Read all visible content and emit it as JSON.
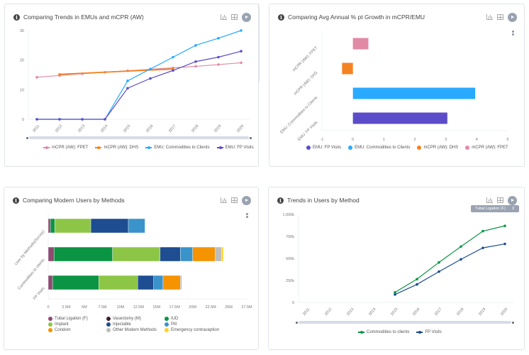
{
  "panels": [
    {
      "title": "Comparing Trends in EMUs and mCPR (AW)",
      "icons": [
        "info-icon",
        "bar-chart-icon",
        "table-icon",
        "play-icon"
      ]
    },
    {
      "title": "Comparing Avg Annual % pt Growth in mCPR/EMU",
      "icons": [
        "info-icon",
        "bar-chart-icon",
        "table-icon",
        "play-icon"
      ]
    },
    {
      "title": "Comparing Modern Users by Methods",
      "icons": [
        "info-icon",
        "bar-chart-icon",
        "table-icon",
        "play-icon"
      ]
    },
    {
      "title": "Trends in Users by Method",
      "icons": [
        "info-icon",
        "bar-chart-icon",
        "table-icon",
        "play-icon"
      ],
      "dropdown": {
        "selected": "Tubal Ligation (F)",
        "arrow": "⇕"
      }
    }
  ],
  "chart_data": [
    {
      "type": "line",
      "title": "Comparing Trends in EMUs and mCPR (AW)",
      "x": [
        "2011",
        "2012",
        "2013",
        "2014",
        "2015",
        "2016",
        "2017",
        "2018",
        "2019",
        "2020"
      ],
      "ylim": [
        0,
        30
      ],
      "yticks": [
        "0",
        "10",
        "20",
        "30"
      ],
      "grid": false,
      "legend": "bottom",
      "series": [
        {
          "name": "mCPR (AW): FPET",
          "color": "#e08aa5",
          "values": [
            14.2,
            14.8,
            15.4,
            15.9,
            16.4,
            16.9,
            17.4,
            17.9,
            18.5,
            19.1
          ]
        },
        {
          "name": "mCPR (AW): DHS",
          "color": "#f58220",
          "values": [
            null,
            15.2,
            null,
            null,
            null,
            null,
            17.0,
            null,
            null,
            null
          ]
        },
        {
          "name": "EMU: Commodities to Clients",
          "color": "#29aaff",
          "values": [
            0,
            0,
            0,
            0,
            13.0,
            17.0,
            21.0,
            25.0,
            27.4,
            30.0
          ]
        },
        {
          "name": "EMU: FP Visits",
          "color": "#5b4dc9",
          "values": [
            0,
            0,
            0,
            0,
            10.5,
            13.8,
            16.5,
            19.5,
            21.0,
            23.0
          ]
        }
      ]
    },
    {
      "type": "bar",
      "orientation": "horizontal",
      "title": "Comparing Avg Annual % pt Growth in mCPR/EMU",
      "categories": [
        "mCPR (AW): FPET",
        "mCPR (AW): DHS",
        "EMU: Commodities to Clients",
        "EMU: FP Visits"
      ],
      "values": [
        0.5,
        -0.35,
        3.95,
        3.05
      ],
      "colors": [
        "#e08aa5",
        "#f58220",
        "#29aaff",
        "#5b4dc9"
      ],
      "xlim": [
        -1,
        5
      ],
      "xticks": [
        "-1",
        "0",
        "1",
        "2",
        "3",
        "4",
        "5"
      ],
      "grid": false,
      "legend": "bottom",
      "legend_entries": [
        {
          "name": "EMU: FP Visits",
          "color": "#5b4dc9"
        },
        {
          "name": "EMU: Commodities to Clients",
          "color": "#29aaff"
        },
        {
          "name": "mCPR (AW): DHS",
          "color": "#f58220"
        },
        {
          "name": "mCPR (AW): FPET",
          "color": "#e08aa5"
        }
      ]
    },
    {
      "type": "bar",
      "orientation": "horizontal",
      "stacked": true,
      "title": "Comparing Modern Users by Methods",
      "categories": [
        "User by Methods(Survey)",
        "Commodities to clients",
        "FP Visits"
      ],
      "xlim": [
        0,
        27.5
      ],
      "xticks": [
        "0",
        "2.5M",
        "5M",
        "7.5M",
        "10M",
        "12.5M",
        "15M",
        "17.5M",
        "20M",
        "22.5M",
        "25M",
        "27.5M"
      ],
      "legend": "bottom",
      "series": [
        {
          "name": "Tubal Ligation (F)",
          "color": "#8e4a72",
          "values": [
            0.3,
            0.8,
            0.6
          ]
        },
        {
          "name": "Vasectomy (M)",
          "color": "#3d1e2e",
          "values": [
            0.0,
            0.0,
            0.0
          ]
        },
        {
          "name": "IUD",
          "color": "#0b9444",
          "values": [
            0.6,
            8.1,
            6.4
          ]
        },
        {
          "name": "Implant",
          "color": "#8dc646",
          "values": [
            5.0,
            6.6,
            5.4
          ]
        },
        {
          "name": "Injectable",
          "color": "#1e4d91",
          "values": [
            5.2,
            2.8,
            2.2
          ]
        },
        {
          "name": "Pill",
          "color": "#3a93cb",
          "values": [
            2.3,
            1.7,
            1.3
          ]
        },
        {
          "name": "Condom",
          "color": "#f59300",
          "values": [
            0.0,
            3.1,
            2.4
          ]
        },
        {
          "name": "Other Modern Methods",
          "color": "#bdbdbd",
          "values": [
            0.0,
            0.9,
            0.2
          ]
        },
        {
          "name": "Emergency contraception",
          "color": "#ffd21f",
          "values": [
            0.0,
            0.25,
            0.0
          ]
        }
      ]
    },
    {
      "type": "line",
      "title": "Trends in Users by Method",
      "x": [
        "2011",
        "2012",
        "2013",
        "2014",
        "2015",
        "2016",
        "2017",
        "2018",
        "2019",
        "2020"
      ],
      "ylim": [
        0,
        1000
      ],
      "yticks": [
        "0",
        "250k",
        "500k",
        "750k",
        "1,000k"
      ],
      "grid": false,
      "legend": "bottom",
      "series": [
        {
          "name": "Commodities to clients",
          "color": "#0b9444",
          "values": [
            null,
            null,
            null,
            null,
            115,
            265,
            455,
            635,
            810,
            870
          ]
        },
        {
          "name": "FP Visits",
          "color": "#1e4d91",
          "values": [
            null,
            null,
            null,
            null,
            90,
            205,
            350,
            490,
            620,
            665
          ]
        }
      ]
    }
  ]
}
